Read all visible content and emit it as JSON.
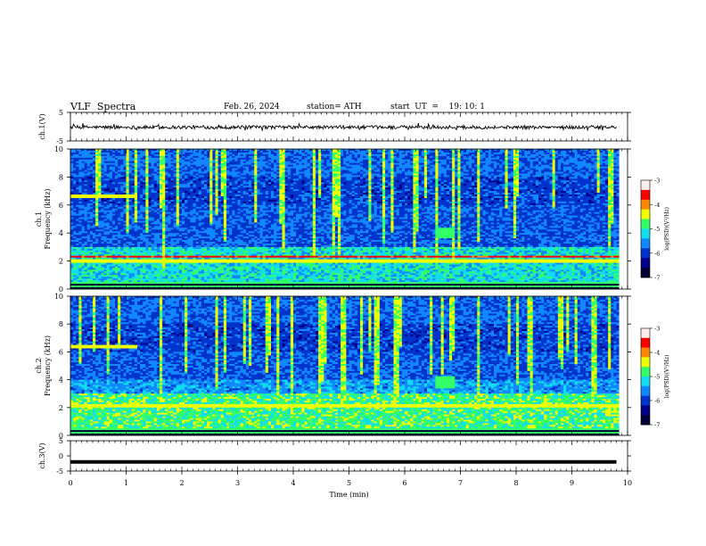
{
  "header": {
    "title": "VLF  Spectra",
    "date": "Feb. 26, 2024",
    "station": "station= ATH",
    "start": "start  UT  =    19: 10: 1"
  },
  "chart_data": [
    {
      "type": "line",
      "panel": "ch1-waveform",
      "ylabel": "ch.1(V)",
      "ylim": [
        -5,
        5
      ],
      "yticks": [
        "5",
        "-5"
      ],
      "xlim": [
        0,
        10
      ],
      "series_color": "#000000",
      "approx_level_V": -0.2,
      "approx_noise_V": 0.6,
      "x_extent_min": [
        0,
        9.8
      ]
    },
    {
      "type": "heatmap",
      "panel": "ch1-spectrogram",
      "ylabel": "ch.1\nFrequency  (kHz)",
      "ylim": [
        0,
        10
      ],
      "yticks": [
        "0",
        "2",
        "4",
        "6",
        "8",
        "10"
      ],
      "xlim": [
        0,
        10
      ],
      "colorbar": {
        "label": "log(PSD)(V²/Hz)",
        "range": [
          -7,
          -3
        ],
        "ticks": [
          "-3",
          "-4",
          "-5",
          "-6",
          "-7"
        ]
      },
      "features": {
        "tone_band_kHz": 6.6,
        "tone_band_end_min": 1.2,
        "strong_line_kHz": 2.0,
        "red_line_kHz": 2.3,
        "burst_min": 6.7,
        "burst_kHz": 4.0
      }
    },
    {
      "type": "heatmap",
      "panel": "ch2-spectrogram",
      "ylabel": "ch.2\nFrequency  (kHz)",
      "ylim": [
        0,
        10
      ],
      "yticks": [
        "0",
        "2",
        "4",
        "6",
        "8",
        "10"
      ],
      "xlim": [
        0,
        10
      ],
      "colorbar": {
        "label": "log(PSD)(V²/Hz)",
        "range": [
          -7,
          -3
        ],
        "ticks": [
          "-3",
          "-4",
          "-5",
          "-6",
          "-7"
        ]
      },
      "features": {
        "tone_band_kHz": 6.4,
        "tone_band_end_min": 1.2,
        "strong_line_kHz": 2.1,
        "burst_min": 6.7,
        "burst_kHz": 3.8
      }
    },
    {
      "type": "line",
      "panel": "ch3-waveform",
      "ylabel": "ch.3(V)",
      "ylim": [
        -5,
        5
      ],
      "yticks": [
        "5",
        "0",
        "-5"
      ],
      "xlim": [
        0,
        10
      ],
      "xticks": [
        "0",
        "1",
        "2",
        "3",
        "4",
        "5",
        "6",
        "7",
        "8",
        "9",
        "10"
      ],
      "xlabel": "Time  (min)",
      "series_color": "#000000",
      "approx_level_V": -2.0,
      "x_extent_min": [
        0,
        9.8
      ]
    }
  ],
  "colormap": [
    "#000033",
    "#000088",
    "#0033cc",
    "#1188ff",
    "#11ddee",
    "#33ff66",
    "#eeff00",
    "#ff8800",
    "#ff0000",
    "#ffeeee"
  ]
}
